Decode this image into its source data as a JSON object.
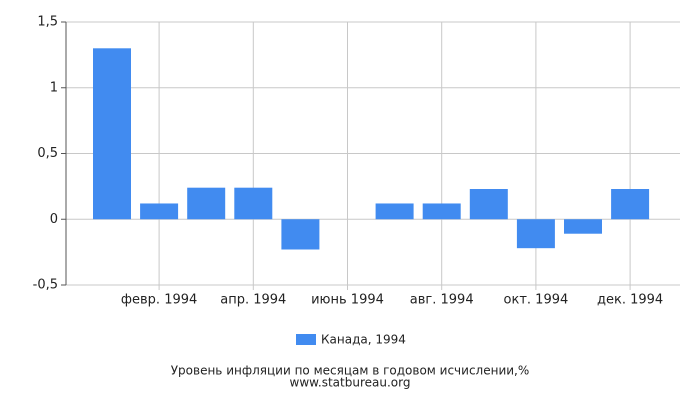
{
  "chart_data": {
    "type": "bar",
    "title": "Уровень инфляции по месяцам в годовом исчислении,%",
    "subtitle": "www.statbureau.org",
    "categories": [
      null,
      "февр. 1994",
      null,
      "апр. 1994",
      null,
      "июнь 1994",
      null,
      "авг. 1994",
      null,
      "окт. 1994",
      null,
      "дек. 1994"
    ],
    "series": [
      {
        "name": "Канада, 1994",
        "color": "#418bf0",
        "values": [
          1.3,
          0.12,
          0.24,
          0.24,
          -0.23,
          0,
          0.12,
          0.12,
          0.23,
          -0.22,
          -0.11,
          0.23
        ]
      }
    ],
    "ylim": [
      -0.5,
      1.5
    ],
    "yticks": [
      {
        "value": -0.5,
        "label": "-0,5"
      },
      0,
      {
        "value": 0.5,
        "label": "0,5"
      },
      1,
      {
        "value": 1.5,
        "label": "1,5"
      }
    ],
    "grid": true,
    "legend": "bottom"
  }
}
